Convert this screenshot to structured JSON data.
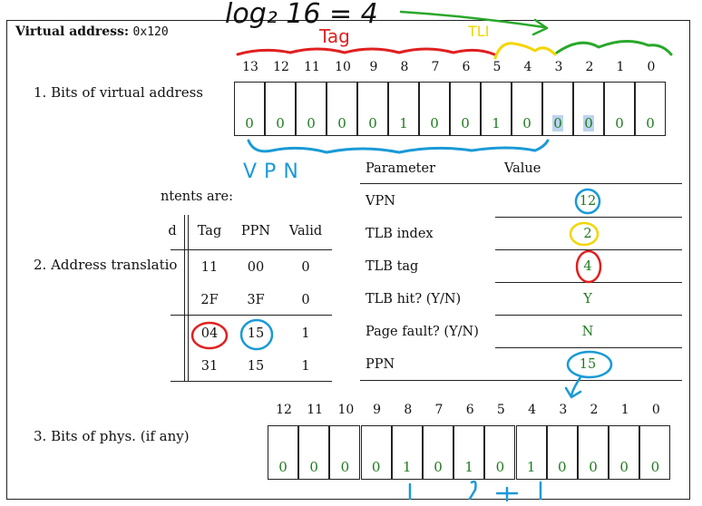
{
  "title": {
    "label": "Virtual address:",
    "value": "0x120"
  },
  "bit_indices": [
    "13",
    "12",
    "11",
    "10",
    "9",
    "8",
    "7",
    "6",
    "5",
    "4",
    "3",
    "2",
    "1",
    "0"
  ],
  "virtual_bits": [
    "0",
    "0",
    "0",
    "0",
    "0",
    "1",
    "0",
    "0",
    "1",
    "0",
    "0",
    "0",
    "0",
    "0"
  ],
  "sections": {
    "s1": "1.  Bits of virtual address",
    "s2": "2.  Address translatio",
    "s3": "3.  Bits of phys. (if any)"
  },
  "tlb": {
    "contents_label": "ntents are:",
    "headers": [
      "d",
      "Tag",
      "PPN",
      "Valid"
    ],
    "rows": [
      {
        "tag": "11",
        "ppn": "00",
        "valid": "0"
      },
      {
        "tag": "2F",
        "ppn": "3F",
        "valid": "0"
      },
      {
        "tag": "04",
        "ppn": "15",
        "valid": "1"
      },
      {
        "tag": "31",
        "ppn": "15",
        "valid": "1"
      }
    ]
  },
  "param_table": {
    "headers": {
      "param": "Parameter",
      "value": "Value"
    },
    "rows": [
      {
        "param": "VPN",
        "value": "12"
      },
      {
        "param": "TLB index",
        "value": "2"
      },
      {
        "param": "TLB tag",
        "value": "4"
      },
      {
        "param": "TLB hit? (Y/N)",
        "value": "Y"
      },
      {
        "param": "Page fault? (Y/N)",
        "value": "N"
      },
      {
        "param": "PPN",
        "value": "15"
      }
    ]
  },
  "phys_indices": [
    "12",
    "11",
    "10",
    "9",
    "8",
    "7",
    "6",
    "5",
    "4",
    "3",
    "2",
    "1",
    "0"
  ],
  "phys_bits": [
    "0",
    "0",
    "0",
    "0",
    "1",
    "0",
    "1",
    "0",
    "1",
    "0",
    "0",
    "0",
    "0"
  ],
  "annotations": {
    "log": "log₂ 16 = 4",
    "tag": "Tag",
    "tlbi": "TLI",
    "vpn": "VPN",
    "ppn_mark": "15",
    "colors": {
      "red": "#e02020",
      "yellow": "#f2d600",
      "green": "#2aa82a",
      "blue": "#1a9ad6",
      "black": "#111111"
    }
  }
}
